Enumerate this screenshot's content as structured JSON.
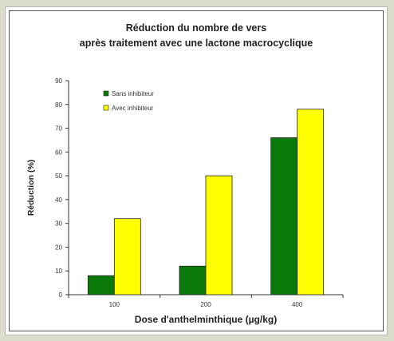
{
  "chart_data": {
    "type": "bar",
    "title_line1": "Réduction du nombre de vers",
    "title_line2": "après traitement avec une lactone macrocyclique",
    "xlabel": "Dose d'anthelminthique (µg/kg)",
    "ylabel": "Réduction (%)",
    "categories": [
      "100",
      "200",
      "400"
    ],
    "series": [
      {
        "name": "Sans inhibiteur",
        "values": [
          8,
          12,
          66
        ],
        "color": "#0b7a0b"
      },
      {
        "name": "Avec inhibiteur",
        "values": [
          32,
          50,
          78
        ],
        "color": "#ffff00"
      }
    ],
    "ylim": [
      0,
      90
    ],
    "yticks": [
      0,
      10,
      20,
      30,
      40,
      50,
      60,
      70,
      80,
      90
    ],
    "grid": false,
    "legend_position": "top-left"
  }
}
